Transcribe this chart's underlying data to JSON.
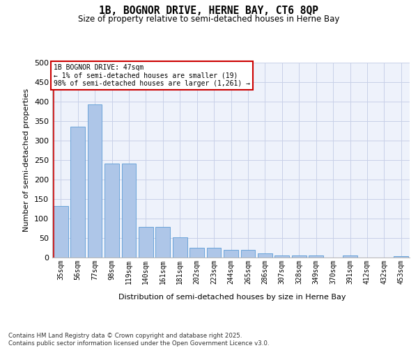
{
  "title": "1B, BOGNOR DRIVE, HERNE BAY, CT6 8QP",
  "subtitle": "Size of property relative to semi-detached houses in Herne Bay",
  "xlabel": "Distribution of semi-detached houses by size in Herne Bay",
  "ylabel": "Number of semi-detached properties",
  "categories": [
    "35sqm",
    "56sqm",
    "77sqm",
    "98sqm",
    "119sqm",
    "140sqm",
    "161sqm",
    "181sqm",
    "202sqm",
    "223sqm",
    "244sqm",
    "265sqm",
    "286sqm",
    "307sqm",
    "328sqm",
    "349sqm",
    "370sqm",
    "391sqm",
    "412sqm",
    "432sqm",
    "453sqm"
  ],
  "values": [
    133,
    335,
    393,
    241,
    241,
    78,
    78,
    51,
    25,
    25,
    19,
    19,
    10,
    6,
    6,
    6,
    0,
    5,
    0,
    0,
    4
  ],
  "bar_color": "#aec6e8",
  "bar_edge_color": "#5b9bd5",
  "annotation_text": "1B BOGNOR DRIVE: 47sqm\n← 1% of semi-detached houses are smaller (19)\n98% of semi-detached houses are larger (1,261) →",
  "annotation_box_color": "#ffffff",
  "annotation_box_edge_color": "#cc0000",
  "ylim": [
    0,
    500
  ],
  "yticks": [
    0,
    50,
    100,
    150,
    200,
    250,
    300,
    350,
    400,
    450,
    500
  ],
  "vline_color": "#cc0000",
  "background_color": "#eef2fb",
  "grid_color": "#c8d0e8",
  "footer": "Contains HM Land Registry data © Crown copyright and database right 2025.\nContains public sector information licensed under the Open Government Licence v3.0."
}
